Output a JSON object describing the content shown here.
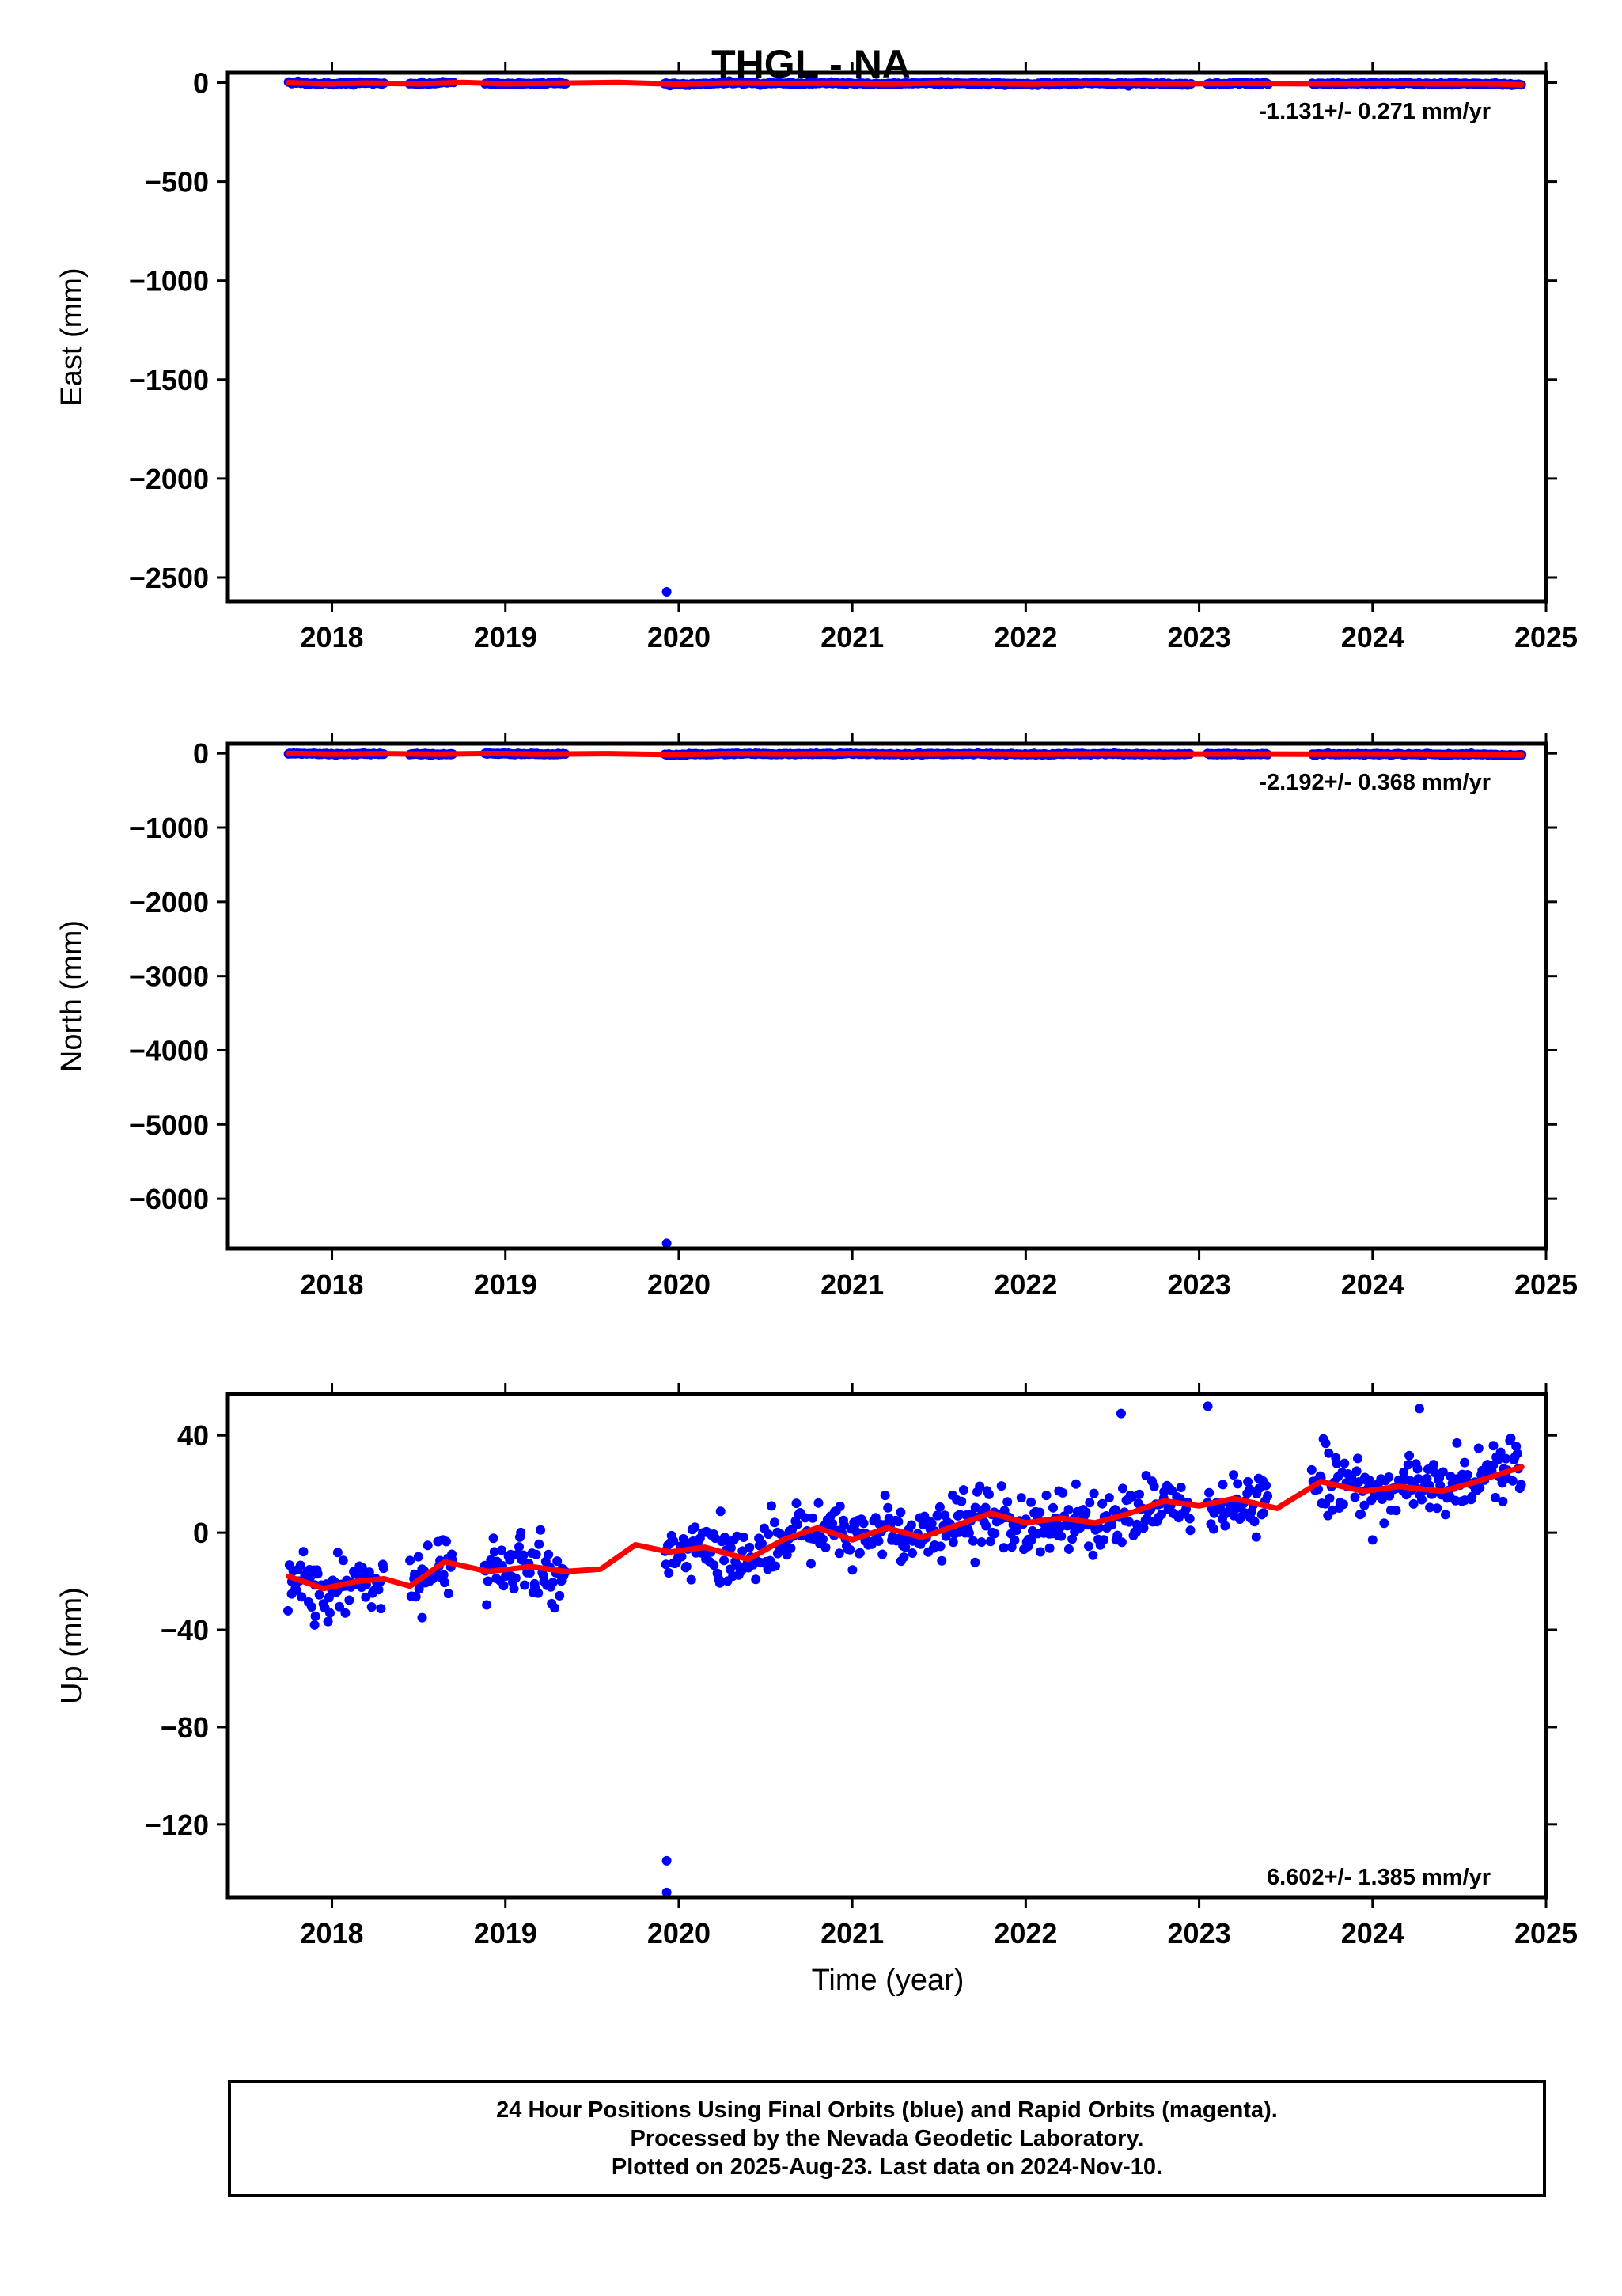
{
  "title": "THGL - NA",
  "xlabel": "Time (year)",
  "footer": {
    "line1": "24 Hour Positions Using Final Orbits (blue) and Rapid Orbits (magenta).",
    "line2": "Processed by the Nevada Geodetic Laboratory.",
    "line3": "Plotted on 2025-Aug-23. Last data on 2024-Nov-10."
  },
  "colors": {
    "final_orbits": "#0000ff",
    "model_fit": "#ff0000",
    "frame": "#000000"
  },
  "chart_data": [
    {
      "type": "scatter",
      "name": "east",
      "ylabel": "East (mm)",
      "xlim": [
        2017.4,
        2025.0
      ],
      "ylim": [
        -2620,
        50
      ],
      "xticks": [
        2018,
        2019,
        2020,
        2021,
        2022,
        2023,
        2024,
        2025
      ],
      "yticks": [
        0,
        -500,
        -1000,
        -1500,
        -2000,
        -2500
      ],
      "rate_label": "-1.131+/- 0.271 mm/yr",
      "rate_mm_yr": -1.131,
      "rate_sigma": 0.271,
      "data_ranges": [
        [
          2017.75,
          2018.3
        ],
        [
          2018.45,
          2018.7
        ],
        [
          2018.88,
          2019.35
        ],
        [
          2019.92,
          2022.95
        ],
        [
          2023.05,
          2023.4
        ],
        [
          2023.65,
          2024.86
        ]
      ],
      "noise_mm": 3,
      "fit": [
        [
          2017.75,
          0
        ],
        [
          2017.95,
          -6
        ],
        [
          2018.2,
          -2
        ],
        [
          2018.5,
          -6
        ],
        [
          2018.75,
          1
        ],
        [
          2019.0,
          -6
        ],
        [
          2019.3,
          -3
        ],
        [
          2019.65,
          1
        ],
        [
          2020.0,
          -8
        ],
        [
          2020.3,
          -2
        ],
        [
          2020.6,
          -4
        ],
        [
          2020.9,
          -3
        ],
        [
          2021.2,
          -7
        ],
        [
          2021.5,
          -2
        ],
        [
          2021.8,
          -4
        ],
        [
          2022.0,
          -7
        ],
        [
          2022.3,
          -3
        ],
        [
          2022.6,
          -5
        ],
        [
          2022.9,
          -6
        ],
        [
          2023.2,
          -4
        ],
        [
          2023.5,
          -5
        ],
        [
          2023.8,
          -6
        ],
        [
          2024.1,
          -4
        ],
        [
          2024.4,
          -6
        ],
        [
          2024.7,
          -6
        ],
        [
          2024.86,
          -11
        ]
      ],
      "outliers": [
        [
          2019.93,
          -2572
        ]
      ]
    },
    {
      "type": "scatter",
      "name": "north",
      "ylabel": "North (mm)",
      "xlim": [
        2017.4,
        2025.0
      ],
      "ylim": [
        -6670,
        130
      ],
      "xticks": [
        2018,
        2019,
        2020,
        2021,
        2022,
        2023,
        2024,
        2025
      ],
      "yticks": [
        0,
        -1000,
        -2000,
        -3000,
        -4000,
        -5000,
        -6000
      ],
      "rate_label": "-2.192+/- 0.368 mm/yr",
      "rate_mm_yr": -2.192,
      "rate_sigma": 0.368,
      "data_ranges": [
        [
          2017.75,
          2018.3
        ],
        [
          2018.45,
          2018.7
        ],
        [
          2018.88,
          2019.35
        ],
        [
          2019.92,
          2022.95
        ],
        [
          2023.05,
          2023.4
        ],
        [
          2023.65,
          2024.86
        ]
      ],
      "noise_mm": 5,
      "fit": [
        [
          2017.75,
          0
        ],
        [
          2018.0,
          -12
        ],
        [
          2018.3,
          -4
        ],
        [
          2018.6,
          -12
        ],
        [
          2018.9,
          -2
        ],
        [
          2019.2,
          -12
        ],
        [
          2019.6,
          -4
        ],
        [
          2019.95,
          -18
        ],
        [
          2020.3,
          -4
        ],
        [
          2020.6,
          -10
        ],
        [
          2021.0,
          -4
        ],
        [
          2021.3,
          -12
        ],
        [
          2021.7,
          -6
        ],
        [
          2022.0,
          -14
        ],
        [
          2022.4,
          -8
        ],
        [
          2022.8,
          -12
        ],
        [
          2023.2,
          -9
        ],
        [
          2023.6,
          -12
        ],
        [
          2024.0,
          -10
        ],
        [
          2024.4,
          -14
        ],
        [
          2024.86,
          -22
        ]
      ],
      "outliers": [
        [
          2019.93,
          -6600
        ]
      ]
    },
    {
      "type": "scatter",
      "name": "up",
      "ylabel": "Up (mm)",
      "xlim": [
        2017.4,
        2025.0
      ],
      "ylim": [
        -150,
        57
      ],
      "xticks": [
        2018,
        2019,
        2020,
        2021,
        2022,
        2023,
        2024,
        2025
      ],
      "yticks": [
        40,
        0,
        -40,
        -80,
        -120
      ],
      "rate_label": "6.602+/- 1.385 mm/yr",
      "rate_mm_yr": 6.602,
      "rate_sigma": 1.385,
      "data_ranges": [
        [
          2017.75,
          2018.3
        ],
        [
          2018.45,
          2018.7
        ],
        [
          2018.88,
          2019.35
        ],
        [
          2019.92,
          2022.95
        ],
        [
          2023.05,
          2023.4
        ],
        [
          2023.65,
          2024.86
        ]
      ],
      "noise_mm": 6,
      "fit": [
        [
          2017.75,
          -18
        ],
        [
          2017.95,
          -23
        ],
        [
          2018.15,
          -20
        ],
        [
          2018.3,
          -19
        ],
        [
          2018.45,
          -22
        ],
        [
          2018.65,
          -12
        ],
        [
          2018.9,
          -16
        ],
        [
          2019.15,
          -14
        ],
        [
          2019.35,
          -16
        ],
        [
          2019.55,
          -15
        ],
        [
          2019.75,
          -5
        ],
        [
          2019.95,
          -8
        ],
        [
          2020.15,
          -6
        ],
        [
          2020.4,
          -11
        ],
        [
          2020.6,
          -3
        ],
        [
          2020.8,
          2
        ],
        [
          2021.0,
          -3
        ],
        [
          2021.2,
          2
        ],
        [
          2021.4,
          -2
        ],
        [
          2021.6,
          3
        ],
        [
          2021.8,
          8
        ],
        [
          2022.0,
          4
        ],
        [
          2022.2,
          6
        ],
        [
          2022.4,
          4
        ],
        [
          2022.6,
          8
        ],
        [
          2022.8,
          13
        ],
        [
          2023.0,
          11
        ],
        [
          2023.2,
          14
        ],
        [
          2023.45,
          10
        ],
        [
          2023.7,
          21
        ],
        [
          2023.95,
          17
        ],
        [
          2024.15,
          19
        ],
        [
          2024.4,
          17
        ],
        [
          2024.6,
          21
        ],
        [
          2024.86,
          27
        ]
      ],
      "outliers": [
        [
          2019.93,
          -135
        ],
        [
          2019.93,
          -148
        ],
        [
          2022.55,
          49
        ],
        [
          2023.05,
          52
        ],
        [
          2024.27,
          51
        ],
        [
          2018.52,
          -35
        ],
        [
          2017.9,
          -38
        ],
        [
          2023.2,
          7
        ],
        [
          2024.0,
          -3
        ]
      ]
    }
  ]
}
